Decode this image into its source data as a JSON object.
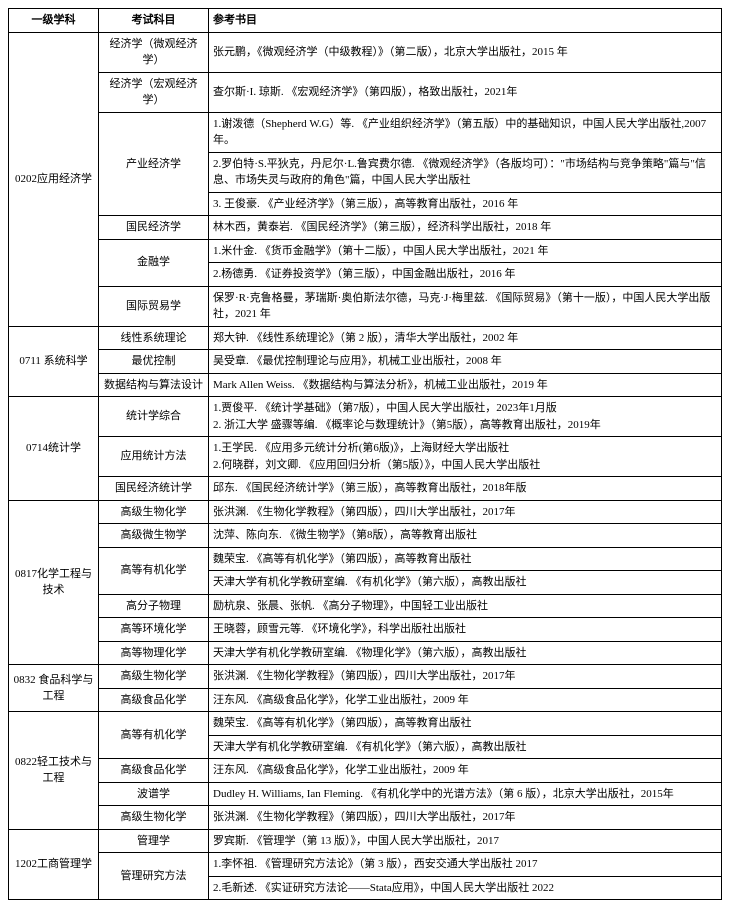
{
  "header": {
    "c1": "一级学科",
    "c2": "考试科目",
    "c3": "参考书目"
  },
  "rows": [
    {
      "disc": "0202应用经济学",
      "disc_rowspan": 9,
      "subj": "经济学（微观经济学）",
      "subj_rowspan": 1,
      "ref": "张元鹏，《微观经济学（中级教程）》（第二版），北京大学出版社，2015 年"
    },
    {
      "subj": "经济学（宏观经济学）",
      "subj_rowspan": 1,
      "ref": "查尔斯·I. 琼斯. 《宏观经济学》（第四版），格致出版社，2021年"
    },
    {
      "subj": "产业经济学",
      "subj_rowspan": 3,
      "ref": "1.谢泼德（Shepherd W.G）等. 《产业组织经济学》（第五版）中的基础知识，中国人民大学出版社,2007年。"
    },
    {
      "ref": "2.罗伯特·S.平狄克，丹尼尔·L.鲁宾费尔德. 《微观经济学》（各版均可）：\"市场结构与竞争策略\"篇与\"信息、市场失灵与政府的角色\"篇，中国人民大学出版社"
    },
    {
      "ref": "3. 王俊豪. 《产业经济学》（第三版），高等教育出版社，2016 年"
    },
    {
      "subj": "国民经济学",
      "subj_rowspan": 1,
      "ref": "林木西，黄泰岩. 《国民经济学》（第三版），经济科学出版社，2018 年"
    },
    {
      "subj": "金融学",
      "subj_rowspan": 2,
      "ref": "1.米什金. 《货币金融学》（第十二版），中国人民大学出版社，2021 年"
    },
    {
      "ref": "2.杨德勇. 《证券投资学》（第三版），中国金融出版社，2016 年"
    },
    {
      "subj": "国际贸易学",
      "subj_rowspan": 1,
      "ref": "保罗·R·克鲁格曼，茅瑞斯·奥伯斯法尔德，马克·J·梅里兹. 《国际贸易》（第十一版），中国人民大学出版社，2021 年"
    },
    {
      "disc": "0711 系统科学",
      "disc_rowspan": 3,
      "subj": "线性系统理论",
      "subj_rowspan": 1,
      "ref": "郑大钟. 《线性系统理论》（第 2 版），清华大学出版社，2002 年"
    },
    {
      "subj": "最优控制",
      "subj_rowspan": 1,
      "ref": "吴受章. 《最优控制理论与应用》，机械工业出版社，2008 年"
    },
    {
      "subj": "数据结构与算法设计",
      "subj_rowspan": 1,
      "ref": "Mark Allen Weiss. 《数据结构与算法分析》，机械工业出版社，2019 年"
    },
    {
      "disc": "0714统计学",
      "disc_rowspan": 3,
      "subj": "统计学综合",
      "subj_rowspan": 1,
      "ref": "1.贾俊平. 《统计学基础》（第7版），中国人民大学出版社，2023年1月版\n2. 浙江大学 盛骤等编. 《概率论与数理统计》（第5版），高等教育出版社，2019年"
    },
    {
      "subj": "应用统计方法",
      "subj_rowspan": 1,
      "ref": "1.王学民. 《应用多元统计分析(第6版)》，上海财经大学出版社\n2.何晓群，刘文卿. 《应用回归分析（第5版）》，中国人民大学出版社"
    },
    {
      "subj": "国民经济统计学",
      "subj_rowspan": 1,
      "ref": "邱东. 《国民经济统计学》（第三版），高等教育出版社，2018年版"
    },
    {
      "disc": "0817化学工程与技术",
      "disc_rowspan": 7,
      "subj": "高级生物化学",
      "subj_rowspan": 1,
      "ref": "张洪渊. 《生物化学教程》（第四版），四川大学出版社，2017年"
    },
    {
      "subj": "高级微生物学",
      "subj_rowspan": 1,
      "ref": "沈萍、陈向东. 《微生物学》（第8版），高等教育出版社"
    },
    {
      "subj": "高等有机化学",
      "subj_rowspan": 2,
      "ref": "魏荣宝. 《高等有机化学》（第四版），高等教育出版社"
    },
    {
      "ref": "天津大学有机化学教研室编. 《有机化学》（第六版），高教出版社"
    },
    {
      "subj": "高分子物理",
      "subj_rowspan": 1,
      "ref": "励杭泉、张晨、张帆. 《高分子物理》，中国轻工业出版社"
    },
    {
      "subj": "高等环境化学",
      "subj_rowspan": 1,
      "ref": "王晓蓉，顾雪元等. 《环境化学》，科学出版社出版社"
    },
    {
      "subj": "高等物理化学",
      "subj_rowspan": 1,
      "ref": "天津大学有机化学教研室编. 《物理化学》（第六版），高教出版社"
    },
    {
      "disc": "0832 食品科学与工程",
      "disc_rowspan": 2,
      "subj": "高级生物化学",
      "subj_rowspan": 1,
      "ref": "张洪渊. 《生物化学教程》（第四版），四川大学出版社，2017年"
    },
    {
      "subj": "高级食品化学",
      "subj_rowspan": 1,
      "ref": "汪东风. 《高级食品化学》，化学工业出版社，2009 年"
    },
    {
      "disc": "0822轻工技术与工程",
      "disc_rowspan": 5,
      "subj": "高等有机化学",
      "subj_rowspan": 2,
      "ref": "魏荣宝. 《高等有机化学》（第四版），高等教育出版社"
    },
    {
      "ref": "天津大学有机化学教研室编. 《有机化学》（第六版），高教出版社"
    },
    {
      "subj": "高级食品化学",
      "subj_rowspan": 1,
      "ref": "汪东风. 《高级食品化学》，化学工业出版社，2009 年"
    },
    {
      "subj": "波谱学",
      "subj_rowspan": 1,
      "ref": "Dudley H. Williams, Ian Fleming. 《有机化学中的光谱方法》（第 6 版），北京大学出版社，2015年"
    },
    {
      "subj": "高级生物化学",
      "subj_rowspan": 1,
      "ref": "张洪渊. 《生物化学教程》（第四版），四川大学出版社，2017年"
    },
    {
      "disc": "1202工商管理学",
      "disc_rowspan": 3,
      "subj": "管理学",
      "subj_rowspan": 1,
      "ref": "罗宾斯. 《管理学（第 13 版）》，中国人民大学出版社，2017"
    },
    {
      "subj": "管理研究方法",
      "subj_rowspan": 2,
      "ref": "1.李怀祖. 《管理研究方法论》（第 3 版），西安交通大学出版社 2017"
    },
    {
      "ref": "2.毛新述. 《实证研究方法论——Stata应用》，中国人民大学出版社 2022"
    }
  ]
}
